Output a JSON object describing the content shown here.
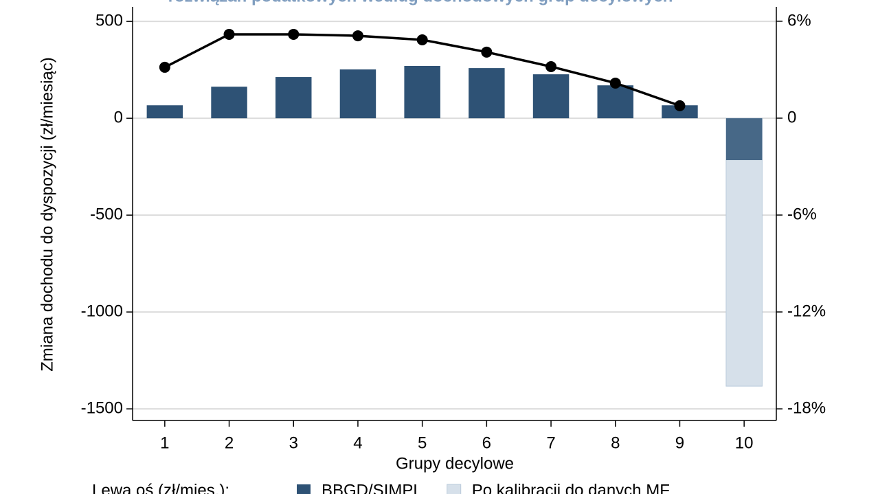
{
  "chart_data": {
    "type": "bar",
    "title": "rozwiązań podatkowych według dochodowych grup decylowych",
    "x_label": "Grupy decylowe",
    "y_label": "Zmiana dochodu do dyspozycji (zł/miesiąc)",
    "legend_title": "Lewa oś (zł/mies.):",
    "categories": [
      "1",
      "2",
      "3",
      "4",
      "5",
      "6",
      "7",
      "8",
      "9",
      "10"
    ],
    "series": [
      {
        "name": "Po kalibracji do danych MF",
        "type": "bar",
        "color": "#d6e0ea",
        "values": [
          null,
          null,
          null,
          null,
          null,
          null,
          null,
          null,
          null,
          -1383
        ]
      },
      {
        "name": "BBGD/SIMPL",
        "type": "bar",
        "color": "#2e5275",
        "values": [
          67,
          163,
          213,
          252,
          270,
          259,
          227,
          170,
          67,
          -216
        ]
      },
      {
        "type": "line",
        "axis": "y2",
        "color": "#000000",
        "values": [
          3.15,
          5.19,
          5.19,
          5.1,
          4.85,
          4.09,
          3.19,
          2.17,
          0.77,
          null
        ]
      }
    ],
    "ylim": [
      -1560,
      575
    ],
    "yticks": [
      -1500,
      -1000,
      -500,
      0,
      500
    ],
    "y2lim": [
      -18.72,
      6.89
    ],
    "y2ticks": [
      {
        "value": -18,
        "label": "-18%"
      },
      {
        "value": -12,
        "label": "-12%"
      },
      {
        "value": -6,
        "label": "-6%"
      },
      0,
      {
        "value": 6,
        "label": "6%"
      }
    ],
    "grid": true
  }
}
